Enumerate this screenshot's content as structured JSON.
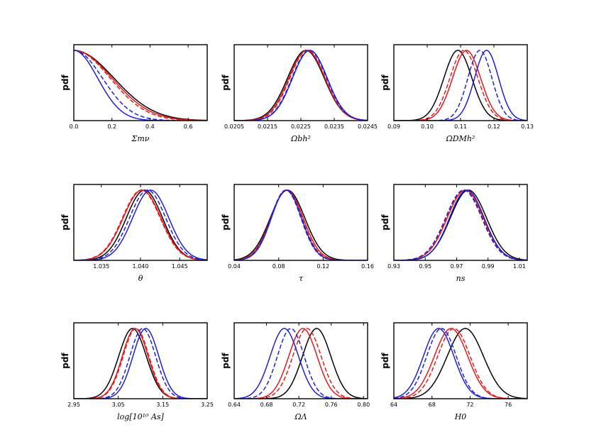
{
  "colors": {
    "black": "#000000",
    "red": "#e41a1c",
    "blue": "#1f1fd6"
  },
  "chart_data": [
    {
      "type": "line",
      "name": "sum-mnu",
      "ylabel": "pdf",
      "xlabel": "Σmν",
      "xlim": [
        0.0,
        0.7
      ],
      "ticks": [
        0.0,
        0.2,
        0.4,
        0.6
      ],
      "tick_labels": [
        "0.0",
        "0.2",
        "0.4",
        "0.6"
      ],
      "series": [
        {
          "name": "black-solid",
          "color": "black",
          "style": "solid",
          "kind": "half",
          "mu": 0.0,
          "sigma": 0.21
        },
        {
          "name": "red-solid",
          "color": "red",
          "style": "solid",
          "kind": "half",
          "mu": 0.0,
          "sigma": 0.2
        },
        {
          "name": "red-dashed",
          "color": "red",
          "style": "dashed",
          "kind": "half",
          "mu": 0.0,
          "sigma": 0.19
        },
        {
          "name": "blue-solid",
          "color": "blue",
          "style": "solid",
          "kind": "half",
          "mu": 0.0,
          "sigma": 0.125
        },
        {
          "name": "blue-dashed",
          "color": "blue",
          "style": "dashed",
          "kind": "half",
          "mu": 0.0,
          "sigma": 0.15
        }
      ]
    },
    {
      "type": "line",
      "name": "omega-b-h2",
      "ylabel": "pdf",
      "xlabel": "Ωbh²",
      "xlim": [
        0.0205,
        0.0245
      ],
      "ticks": [
        0.0205,
        0.0215,
        0.0225,
        0.0235,
        0.0245
      ],
      "tick_labels": [
        "0.0205",
        "0.0215",
        "0.0225",
        "0.0235",
        "0.0245"
      ],
      "series": [
        {
          "name": "black-solid",
          "color": "black",
          "style": "solid",
          "kind": "gauss",
          "mu": 0.02265,
          "sigma": 0.00055
        },
        {
          "name": "red-solid",
          "color": "red",
          "style": "solid",
          "kind": "gauss",
          "mu": 0.02268,
          "sigma": 0.00054
        },
        {
          "name": "red-dashed",
          "color": "red",
          "style": "dashed",
          "kind": "gauss",
          "mu": 0.0227,
          "sigma": 0.00053
        },
        {
          "name": "blue-solid",
          "color": "blue",
          "style": "solid",
          "kind": "gauss",
          "mu": 0.02277,
          "sigma": 0.00052
        },
        {
          "name": "blue-dashed",
          "color": "blue",
          "style": "dashed",
          "kind": "gauss",
          "mu": 0.02275,
          "sigma": 0.00052
        }
      ]
    },
    {
      "type": "line",
      "name": "omega-dm-h2",
      "ylabel": "pdf",
      "xlabel": "ΩDMh²",
      "xlim": [
        0.09,
        0.13
      ],
      "ticks": [
        0.09,
        0.1,
        0.11,
        0.12,
        0.13
      ],
      "tick_labels": [
        "0.09",
        "0.10",
        "0.11",
        "0.12",
        "0.13"
      ],
      "series": [
        {
          "name": "black-solid",
          "color": "black",
          "style": "solid",
          "kind": "gauss",
          "mu": 0.1092,
          "sigma": 0.0042
        },
        {
          "name": "red-solid",
          "color": "red",
          "style": "solid",
          "kind": "gauss",
          "mu": 0.1118,
          "sigma": 0.0042
        },
        {
          "name": "red-dashed",
          "color": "red",
          "style": "dashed",
          "kind": "gauss",
          "mu": 0.111,
          "sigma": 0.0042
        },
        {
          "name": "blue-solid",
          "color": "blue",
          "style": "solid",
          "kind": "gauss",
          "mu": 0.1178,
          "sigma": 0.0036
        },
        {
          "name": "blue-dashed",
          "color": "blue",
          "style": "dashed",
          "kind": "gauss",
          "mu": 0.1158,
          "sigma": 0.0036
        }
      ]
    },
    {
      "type": "line",
      "name": "theta",
      "ylabel": "pdf",
      "xlabel": "θ",
      "xlim": [
        1.0315,
        1.0485
      ],
      "ticks": [
        1.035,
        1.04,
        1.045
      ],
      "tick_labels": [
        "1.035",
        "1.040",
        "1.045"
      ],
      "series": [
        {
          "name": "black-solid",
          "color": "black",
          "style": "solid",
          "kind": "gauss",
          "mu": 1.0405,
          "sigma": 0.0023
        },
        {
          "name": "red-solid",
          "color": "red",
          "style": "solid",
          "kind": "gauss",
          "mu": 1.0402,
          "sigma": 0.0024
        },
        {
          "name": "red-dashed",
          "color": "red",
          "style": "dashed",
          "kind": "gauss",
          "mu": 1.0401,
          "sigma": 0.0024
        },
        {
          "name": "blue-solid",
          "color": "blue",
          "style": "solid",
          "kind": "gauss",
          "mu": 1.0413,
          "sigma": 0.0023
        },
        {
          "name": "blue-dashed",
          "color": "blue",
          "style": "dashed",
          "kind": "gauss",
          "mu": 1.0409,
          "sigma": 0.0023
        }
      ]
    },
    {
      "type": "line",
      "name": "tau",
      "ylabel": "pdf",
      "xlabel": "τ",
      "xlim": [
        0.04,
        0.16
      ],
      "ticks": [
        0.04,
        0.08,
        0.12,
        0.16
      ],
      "tick_labels": [
        "0.04",
        "0.08",
        "0.12",
        "0.16"
      ],
      "series": [
        {
          "name": "black-solid",
          "color": "black",
          "style": "solid",
          "kind": "gauss",
          "mu": 0.088,
          "sigma": 0.0155
        },
        {
          "name": "red-solid",
          "color": "red",
          "style": "solid",
          "kind": "gauss",
          "mu": 0.0875,
          "sigma": 0.0145
        },
        {
          "name": "red-dashed",
          "color": "red",
          "style": "dashed",
          "kind": "gauss",
          "mu": 0.087,
          "sigma": 0.014
        },
        {
          "name": "blue-solid",
          "color": "blue",
          "style": "solid",
          "kind": "gauss",
          "mu": 0.087,
          "sigma": 0.0135
        },
        {
          "name": "blue-dashed",
          "color": "blue",
          "style": "dashed",
          "kind": "gauss",
          "mu": 0.0865,
          "sigma": 0.0135
        }
      ]
    },
    {
      "type": "line",
      "name": "ns",
      "ylabel": "pdf",
      "xlabel": "ns",
      "xlim": [
        0.93,
        1.015
      ],
      "ticks": [
        0.93,
        0.95,
        0.97,
        0.99,
        1.01
      ],
      "tick_labels": [
        "0.93",
        "0.95",
        "0.97",
        "0.99",
        "1.01"
      ],
      "series": [
        {
          "name": "black-solid",
          "color": "black",
          "style": "solid",
          "kind": "gauss",
          "mu": 0.9775,
          "sigma": 0.0115
        },
        {
          "name": "red-solid",
          "color": "red",
          "style": "solid",
          "kind": "gauss",
          "mu": 0.9755,
          "sigma": 0.0115
        },
        {
          "name": "red-dashed",
          "color": "red",
          "style": "dashed",
          "kind": "gauss",
          "mu": 0.975,
          "sigma": 0.0115
        },
        {
          "name": "blue-solid",
          "color": "blue",
          "style": "solid",
          "kind": "gauss",
          "mu": 0.9765,
          "sigma": 0.011
        },
        {
          "name": "blue-dashed",
          "color": "blue",
          "style": "dashed",
          "kind": "gauss",
          "mu": 0.9745,
          "sigma": 0.0115
        }
      ]
    },
    {
      "type": "line",
      "name": "log-as",
      "ylabel": "pdf",
      "xlabel": "log[10¹⁰ As]",
      "xlim": [
        2.95,
        3.25
      ],
      "ticks": [
        2.95,
        3.05,
        3.15,
        3.25
      ],
      "tick_labels": [
        "2.95",
        "3.05",
        "3.15",
        "3.25"
      ],
      "series": [
        {
          "name": "black-solid",
          "color": "black",
          "style": "solid",
          "kind": "gauss",
          "mu": 3.082,
          "sigma": 0.031
        },
        {
          "name": "red-solid",
          "color": "red",
          "style": "solid",
          "kind": "gauss",
          "mu": 3.088,
          "sigma": 0.029
        },
        {
          "name": "red-dashed",
          "color": "red",
          "style": "dashed",
          "kind": "gauss",
          "mu": 3.09,
          "sigma": 0.029
        },
        {
          "name": "blue-solid",
          "color": "blue",
          "style": "solid",
          "kind": "gauss",
          "mu": 3.112,
          "sigma": 0.029
        },
        {
          "name": "blue-dashed",
          "color": "blue",
          "style": "dashed",
          "kind": "gauss",
          "mu": 3.105,
          "sigma": 0.029
        }
      ]
    },
    {
      "type": "line",
      "name": "omega-lambda",
      "ylabel": "pdf",
      "xlabel": "ΩΛ",
      "xlim": [
        0.64,
        0.805
      ],
      "ticks": [
        0.64,
        0.68,
        0.72,
        0.76,
        0.8
      ],
      "tick_labels": [
        "0.64",
        "0.68",
        "0.72",
        "0.76",
        "0.80"
      ],
      "series": [
        {
          "name": "black-solid",
          "color": "black",
          "style": "solid",
          "kind": "gauss",
          "mu": 0.742,
          "sigma": 0.0175
        },
        {
          "name": "red-solid",
          "color": "red",
          "style": "solid",
          "kind": "gauss",
          "mu": 0.725,
          "sigma": 0.0175
        },
        {
          "name": "red-dashed",
          "color": "red",
          "style": "dashed",
          "kind": "gauss",
          "mu": 0.73,
          "sigma": 0.0175
        },
        {
          "name": "blue-solid",
          "color": "blue",
          "style": "solid",
          "kind": "gauss",
          "mu": 0.702,
          "sigma": 0.0175
        },
        {
          "name": "blue-dashed",
          "color": "blue",
          "style": "dashed",
          "kind": "gauss",
          "mu": 0.71,
          "sigma": 0.0165
        }
      ]
    },
    {
      "type": "line",
      "name": "h0",
      "ylabel": "pdf",
      "xlabel": "H0",
      "xlim": [
        64,
        78
      ],
      "ticks": [
        64,
        68,
        72,
        76
      ],
      "tick_labels": [
        "64",
        "68",
        "72",
        "76"
      ],
      "series": [
        {
          "name": "black-solid",
          "color": "black",
          "style": "solid",
          "kind": "gauss",
          "mu": 71.5,
          "sigma": 1.9
        },
        {
          "name": "red-solid",
          "color": "red",
          "style": "solid",
          "kind": "gauss",
          "mu": 70.0,
          "sigma": 1.75
        },
        {
          "name": "red-dashed",
          "color": "red",
          "style": "dashed",
          "kind": "gauss",
          "mu": 70.3,
          "sigma": 1.7
        },
        {
          "name": "blue-solid",
          "color": "blue",
          "style": "solid",
          "kind": "gauss",
          "mu": 68.7,
          "sigma": 1.6
        },
        {
          "name": "blue-dashed",
          "color": "blue",
          "style": "dashed",
          "kind": "gauss",
          "mu": 69.0,
          "sigma": 1.55
        }
      ]
    }
  ]
}
